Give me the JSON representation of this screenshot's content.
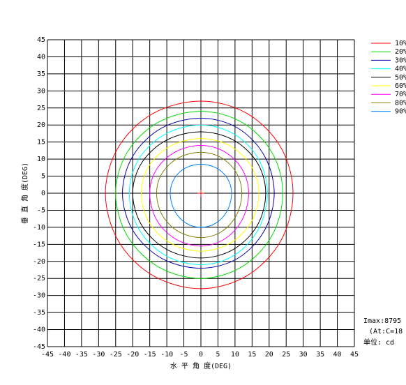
{
  "chart_data": {
    "type": "contour",
    "x_label": "水 平 角 度(DEG)",
    "y_label": "垂 直 角 度(DEG)",
    "xlim": [
      -45,
      45
    ],
    "ylim": [
      -45,
      45
    ],
    "xticks": [
      -45,
      -40,
      -35,
      -30,
      -25,
      -20,
      -15,
      -10,
      -5,
      0,
      5,
      10,
      15,
      20,
      25,
      30,
      35,
      40,
      45
    ],
    "yticks": [
      -45,
      -40,
      -35,
      -30,
      -25,
      -20,
      -15,
      -10,
      -5,
      0,
      5,
      10,
      15,
      20,
      25,
      30,
      35,
      40,
      45
    ],
    "grid": true,
    "legend": "upper right",
    "annotations": [
      "Imax:8795",
      "(At:C=18",
      "单位: cd"
    ],
    "series": [
      {
        "name": "10%",
        "color": "#ff0000",
        "x": [
          27,
          23.4,
          13.5,
          0,
          -14,
          -24.2,
          -28,
          -24.2,
          -14,
          0,
          13.5,
          23.4
        ],
        "y": [
          0,
          13.5,
          23.4,
          27,
          23.4,
          13.5,
          0,
          -14,
          -24.2,
          -28,
          -24.2,
          -14
        ]
      },
      {
        "name": "20%",
        "color": "#00dd00",
        "x": [
          24,
          20.8,
          12,
          0,
          -12.5,
          -21.6,
          -25,
          -21.6,
          -12.5,
          0,
          12,
          20.8
        ],
        "y": [
          0,
          12,
          20.8,
          24,
          20.8,
          12,
          0,
          -12.5,
          -21.6,
          -25,
          -21.6,
          -12.5
        ]
      },
      {
        "name": "30%",
        "color": "#0000aa",
        "x": [
          21.5,
          18.6,
          10.8,
          0,
          -11.5,
          -19.9,
          -23,
          -19.9,
          -11.5,
          0,
          10.8,
          18.6
        ],
        "y": [
          0,
          11,
          19.1,
          22,
          19.1,
          11,
          0,
          -11,
          -19.1,
          -22,
          -19.1,
          -11
        ]
      },
      {
        "name": "40%",
        "color": "#00ffff",
        "x": [
          19.5,
          16.9,
          9.8,
          0,
          -10.5,
          -18.2,
          -21,
          -18.2,
          -10.5,
          0,
          9.8,
          16.9
        ],
        "y": [
          0,
          10,
          17.3,
          20,
          17.3,
          10,
          0,
          -10.5,
          -18.2,
          -21,
          -18.2,
          -10.5
        ]
      },
      {
        "name": "50%",
        "color": "#000000",
        "x": [
          19,
          16.5,
          9.5,
          0,
          -10,
          -17.3,
          -20,
          -17.3,
          -10,
          0,
          9.5,
          16.5
        ],
        "y": [
          0,
          9,
          15.6,
          18,
          15.6,
          9,
          0,
          -9.5,
          -16.5,
          -19,
          -16.5,
          -9.5
        ]
      },
      {
        "name": "60%",
        "color": "#ffff00",
        "x": [
          17,
          14.7,
          8.5,
          0,
          -8.8,
          -15.2,
          -17.5,
          -15.2,
          -8.8,
          0,
          8.5,
          14.7
        ],
        "y": [
          0,
          8,
          13.9,
          16,
          13.9,
          8,
          0,
          -8.5,
          -14.7,
          -17,
          -14.7,
          -8.5
        ]
      },
      {
        "name": "70%",
        "color": "#ff00ff",
        "x": [
          14,
          12.1,
          7,
          0,
          -7.5,
          -13,
          -15,
          -13,
          -7.5,
          0,
          7,
          12.1
        ],
        "y": [
          0,
          7,
          12.1,
          14,
          12.1,
          7,
          0,
          -7.8,
          -13.4,
          -15.5,
          -13.4,
          -7.8
        ]
      },
      {
        "name": "80%",
        "color": "#808000",
        "x": [
          12,
          10.4,
          6,
          0,
          -6.5,
          -11.3,
          -13,
          -11.3,
          -6.5,
          0,
          6,
          10.4
        ],
        "y": [
          0,
          6,
          10.4,
          12,
          10.4,
          6,
          0,
          -6.5,
          -11.3,
          -13,
          -11.3,
          -6.5
        ]
      },
      {
        "name": "90%",
        "color": "#0080ff",
        "x": [
          9,
          7.8,
          4.5,
          0,
          -4.5,
          -7.8,
          -9,
          -7.8,
          -4.5,
          0,
          4.5,
          7.8
        ],
        "y": [
          0,
          4.3,
          7.4,
          8.5,
          7.4,
          4.3,
          0,
          -5,
          -8.7,
          -10,
          -8.7,
          -5
        ]
      }
    ]
  }
}
